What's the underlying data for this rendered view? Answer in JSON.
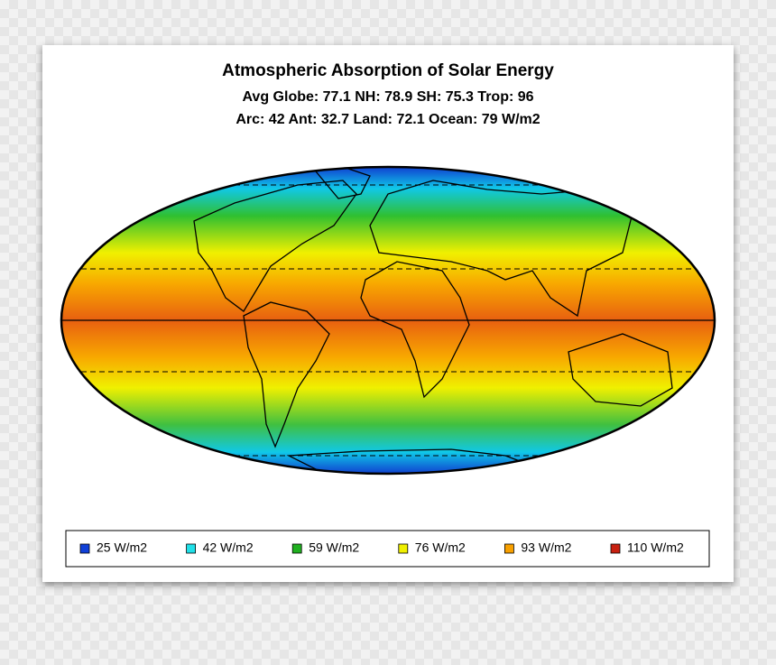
{
  "title": "Atmospheric Absorption of Solar Energy",
  "stats": [
    "Avg Globe: 77.1  NH: 78.9  SH: 75.3  Trop: 96",
    "Arc: 42  Ant: 32.7  Land: 72.1 Ocean: 79 W/m2"
  ],
  "legend": [
    {
      "label": "25 W/m2",
      "color": "#1040d8"
    },
    {
      "label": "42 W/m2",
      "color": "#20e0e8"
    },
    {
      "label": "59 W/m2",
      "color": "#20b020"
    },
    {
      "label": "76 W/m2",
      "color": "#f0f000"
    },
    {
      "label": "93 W/m2",
      "color": "#f8a000"
    },
    {
      "label": "110 W/m2",
      "color": "#c82010"
    }
  ]
}
